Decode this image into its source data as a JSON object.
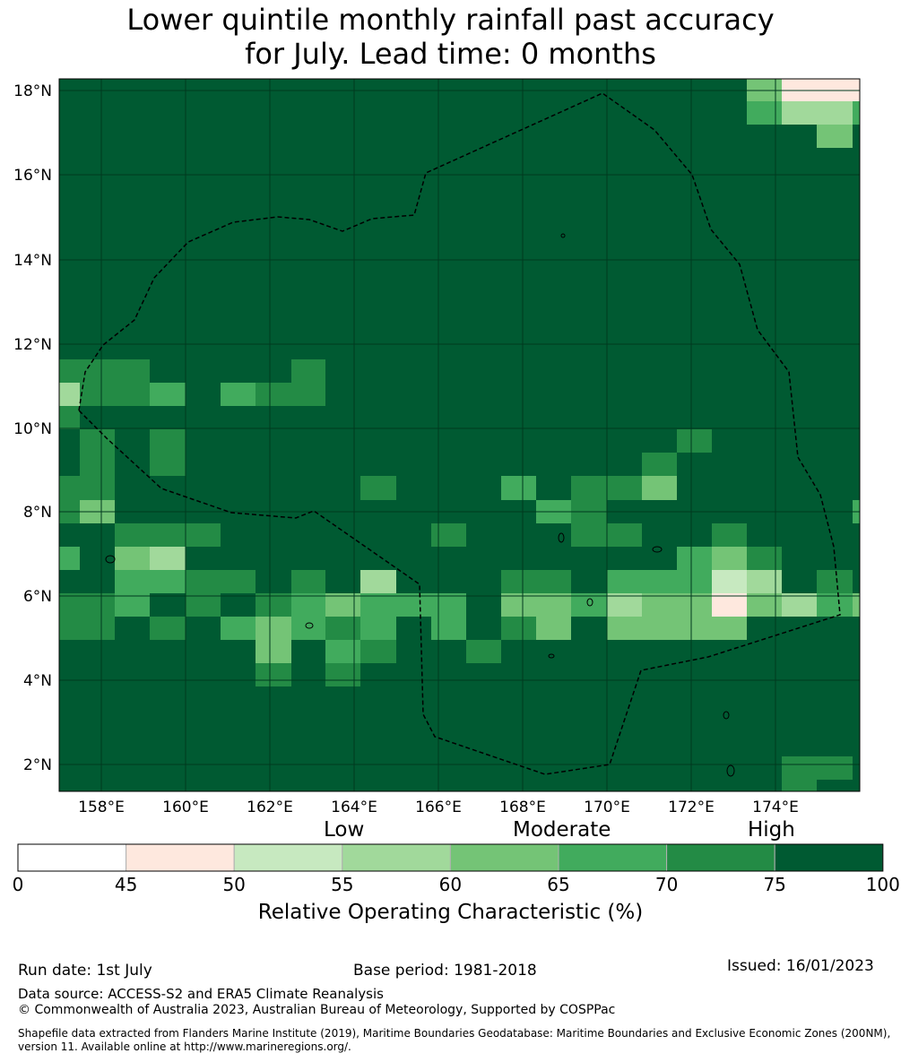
{
  "title": {
    "line1": "Lower quintile monthly rainfall past accuracy",
    "line2": "for July. Lead time: 0 months"
  },
  "map": {
    "lon_ticks": [
      "158°E",
      "160°E",
      "162°E",
      "164°E",
      "166°E",
      "168°E",
      "170°E",
      "172°E",
      "174°E"
    ],
    "lat_ticks": [
      "18°N",
      "16°N",
      "14°N",
      "12°N",
      "10°N",
      "8°N",
      "6°N",
      "4°N",
      "2°N"
    ],
    "background_color": "#005a32",
    "boundary": "EEZ dashed outline",
    "notable_cells": [
      {
        "lon_deg": 173.2,
        "lat_deg": 5.6,
        "category": "45-50"
      },
      {
        "lon_deg": 174.3,
        "lat_deg": 17.9,
        "category": "45-50"
      },
      {
        "lon_deg": 173.2,
        "lat_deg": 6.1,
        "category": "50-55"
      }
    ]
  },
  "legend": {
    "labels": {
      "low": "Low",
      "moderate": "Moderate",
      "high": "High"
    },
    "ticks": [
      "0",
      "45",
      "50",
      "55",
      "60",
      "65",
      "70",
      "75",
      "100"
    ],
    "colors": [
      "#ffffff",
      "#fee8de",
      "#c7e9c0",
      "#a1d99b",
      "#74c476",
      "#41ab5d",
      "#238b45",
      "#005a32"
    ],
    "title": "Relative Operating Characteristic (%)"
  },
  "footer": {
    "run_date": "Run date: 1st July",
    "base_period": "Base period: 1981-2018",
    "issued": "Issued: 16/01/2023",
    "data_source": "Data source: ACCESS-S2 and ERA5 Climate Reanalysis",
    "copyright": "© Commonwealth of Australia 2023, Australian Bureau of Meteorology, Supported by COSPPac",
    "shapefile": "Shapefile data extracted from Flanders Marine Institute (2019), Maritime Boundaries Geodatabase: Maritime Boundaries and Exclusive Economic Zones (200NM), version 11. Available online at http://www.marineregions.org/."
  }
}
